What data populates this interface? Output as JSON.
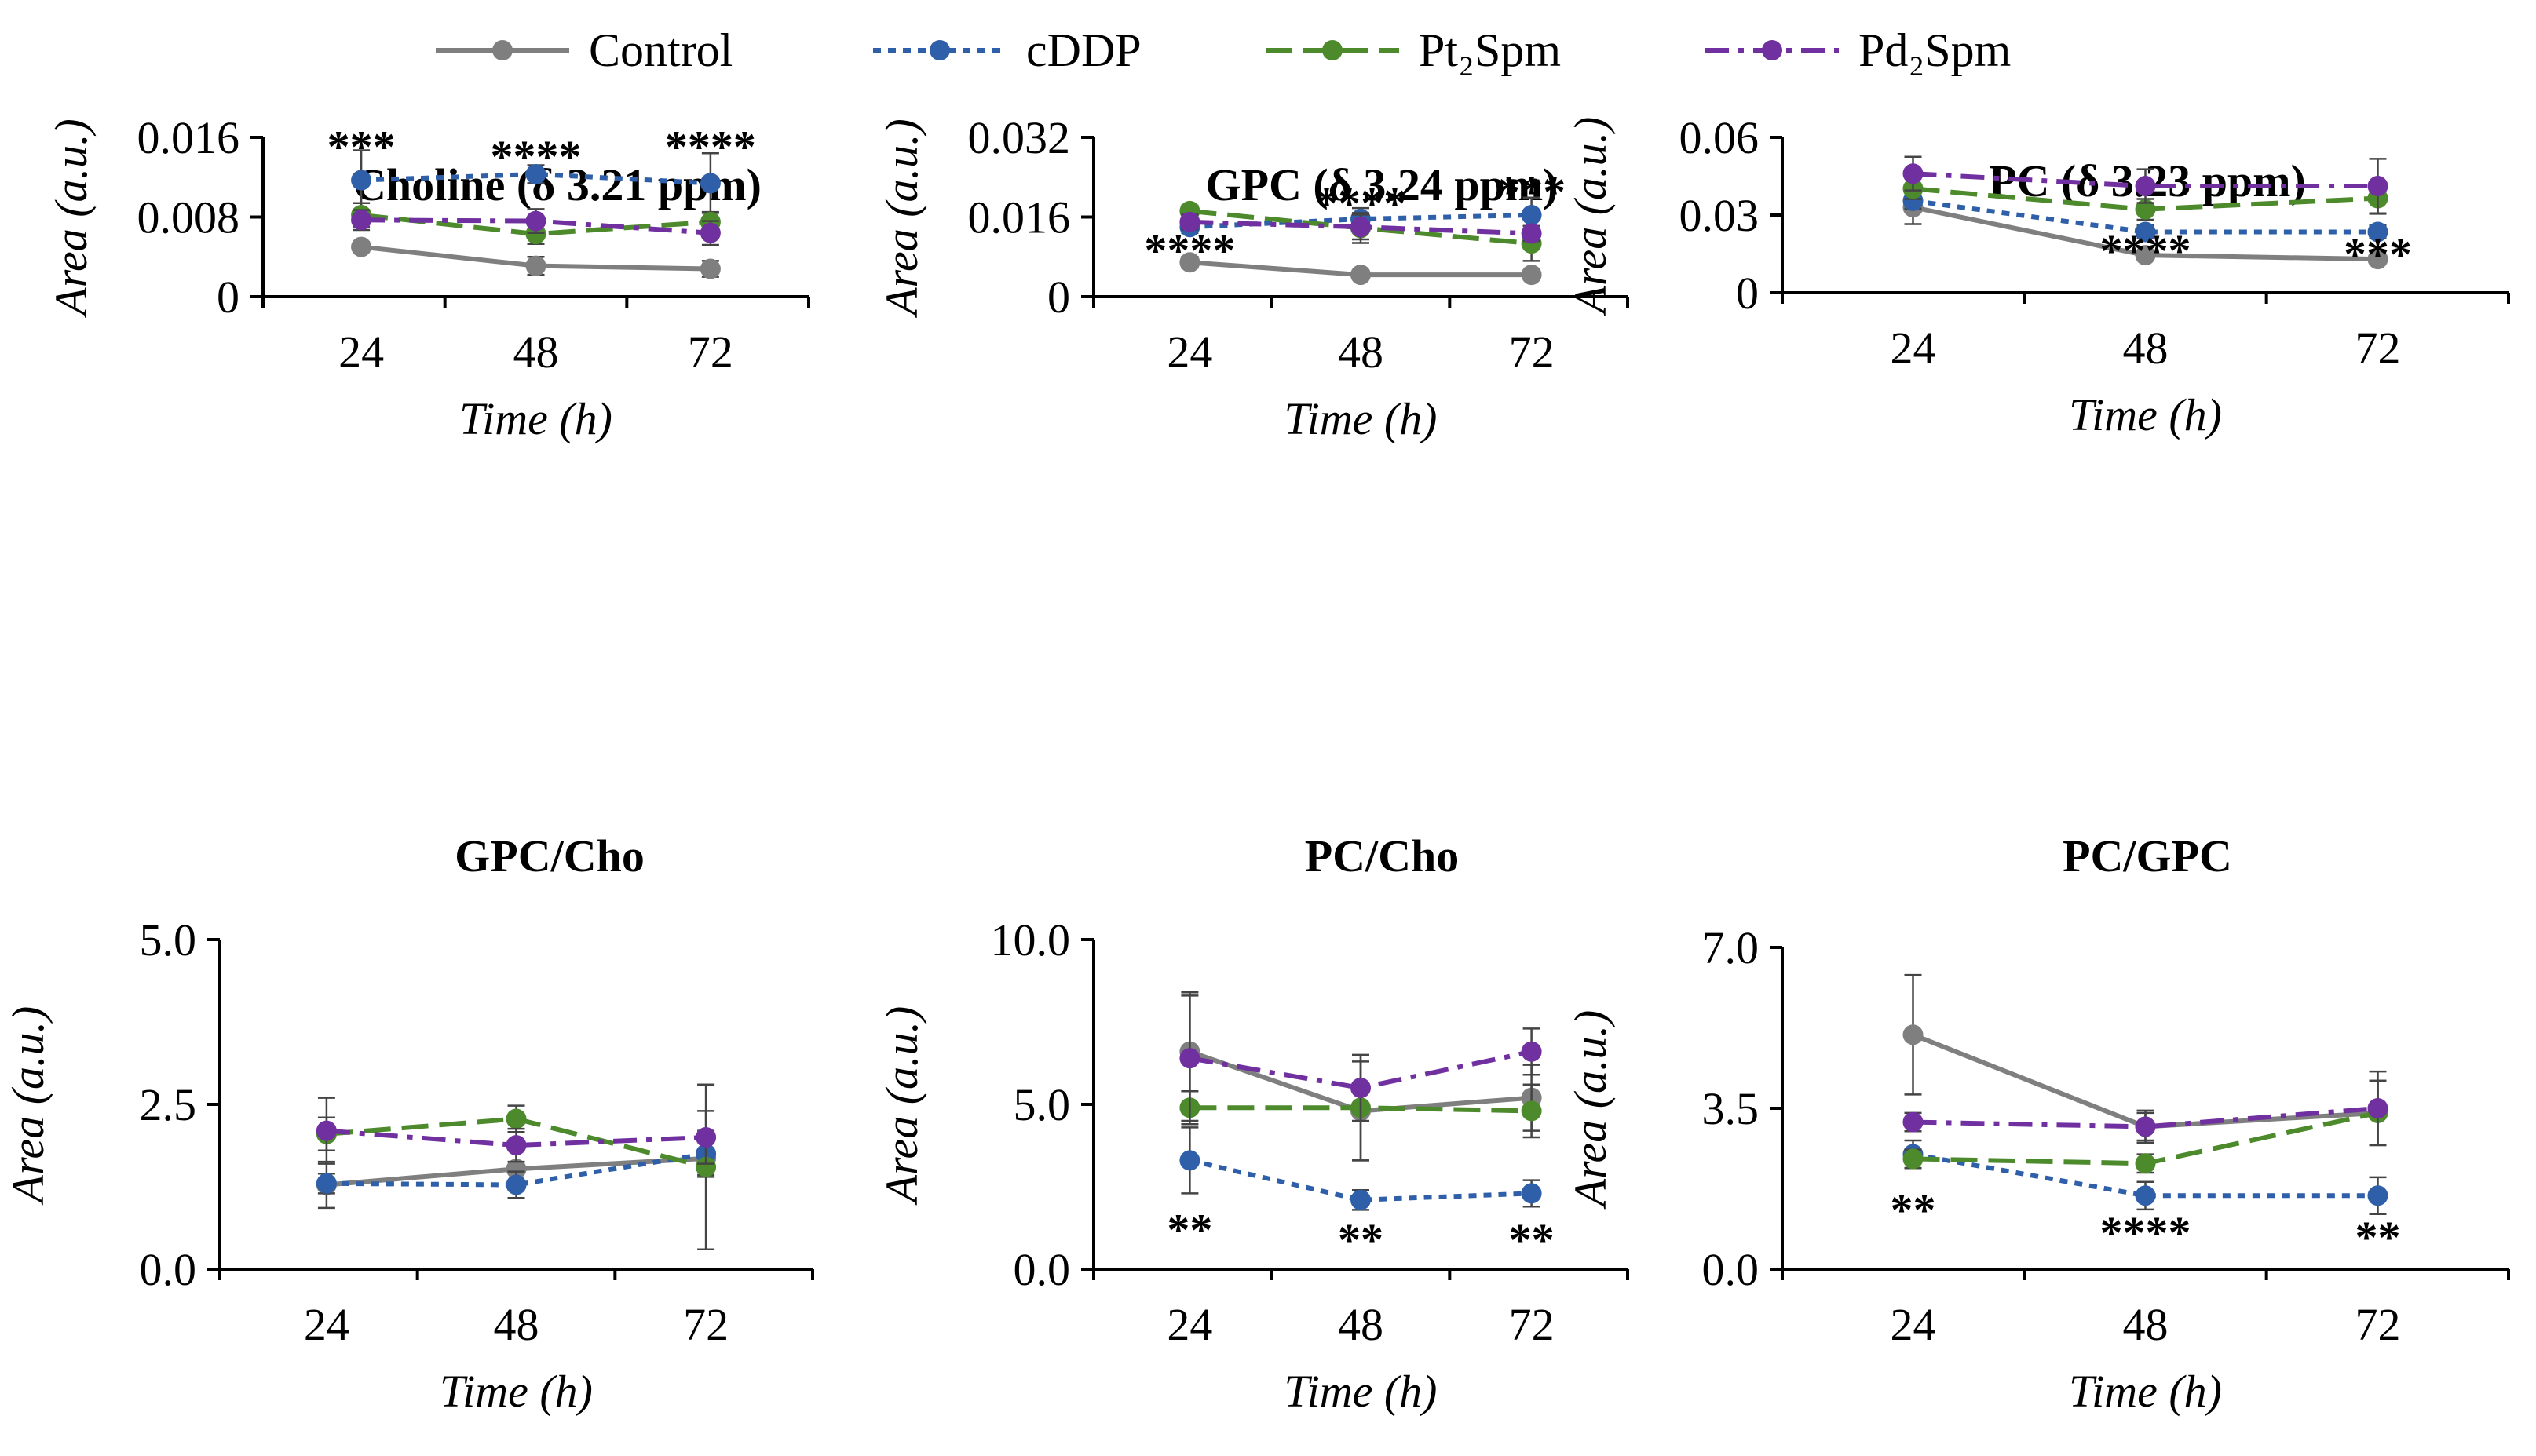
{
  "legend": [
    {
      "name": "Control",
      "color": "#7f7f7f",
      "dash": "solid"
    },
    {
      "name": "cDDP",
      "color": "#2e5fa8",
      "dash": "dot"
    },
    {
      "name": "Pt₂Spm",
      "color": "#4c8a2b",
      "dash": "longdash"
    },
    {
      "name": "Pd₂Spm",
      "color": "#7030a0",
      "dash": "dashdot"
    }
  ],
  "chart_data": [
    {
      "type": "line",
      "title": "Choline (δ 3.21 ppm)",
      "xlabel": "Time (h)",
      "ylabel": "Area (a.u.)",
      "categories": [
        "24",
        "48",
        "72"
      ],
      "ylim": [
        0,
        0.016
      ],
      "yticks": [
        "0",
        "0.008",
        "0.016"
      ],
      "series": [
        {
          "name": "Control",
          "values": [
            0.005,
            0.0031,
            0.0028
          ],
          "errors": [
            0.0005,
            0.0009,
            0.0008
          ]
        },
        {
          "name": "cDDP",
          "values": [
            0.0117,
            0.0123,
            0.0114
          ],
          "errors": [
            0.003,
            0.0009,
            0.003
          ]
        },
        {
          "name": "Pt₂Spm",
          "values": [
            0.0082,
            0.0063,
            0.0075
          ],
          "errors": [
            0.0012,
            0.001,
            0.001
          ]
        },
        {
          "name": "Pd₂Spm",
          "values": [
            0.0077,
            0.0076,
            0.0064
          ],
          "errors": [
            0.001,
            0.0012,
            0.0012
          ]
        }
      ],
      "annotations": [
        {
          "x": "24",
          "y": 0.0151,
          "text": "***"
        },
        {
          "x": "48",
          "y": 0.0141,
          "text": "****"
        },
        {
          "x": "72",
          "y": 0.0151,
          "text": "****"
        }
      ]
    },
    {
      "type": "line",
      "title": "GPC (δ 3.24 ppm)",
      "xlabel": "Time (h)",
      "ylabel": "Area (a.u.)",
      "categories": [
        "24",
        "48",
        "72"
      ],
      "ylim": [
        0,
        0.032
      ],
      "yticks": [
        "0",
        "0.016",
        "0.032"
      ],
      "series": [
        {
          "name": "Control",
          "values": [
            0.0069,
            0.0044,
            0.0044
          ],
          "errors": [
            0.0011,
            0.0004,
            0.0005
          ]
        },
        {
          "name": "cDDP",
          "values": [
            0.014,
            0.0156,
            0.0164
          ],
          "errors": [
            0.0012,
            0.0022,
            0.0035
          ]
        },
        {
          "name": "Pt₂Spm",
          "values": [
            0.0172,
            0.0138,
            0.0107
          ],
          "errors": [
            0.0011,
            0.003,
            0.0035
          ]
        },
        {
          "name": "Pd₂Spm",
          "values": [
            0.015,
            0.014,
            0.0127
          ],
          "errors": [
            0.0015,
            0.0025,
            0.0015
          ]
        }
      ],
      "annotations": [
        {
          "x": "24",
          "y": 0.0094,
          "text": "****"
        },
        {
          "x": "48",
          "y": 0.0188,
          "text": "****"
        },
        {
          "x": "72",
          "y": 0.0211,
          "text": "***"
        }
      ]
    },
    {
      "type": "line",
      "title": "PC (δ 3.23 ppm)",
      "xlabel": "Time (h)",
      "ylabel": "Area (a.u.)",
      "categories": [
        "24",
        "48",
        "72"
      ],
      "ylim": [
        0,
        0.06
      ],
      "yticks": [
        "0",
        "0.03",
        "0.06"
      ],
      "series": [
        {
          "name": "Control",
          "values": [
            0.033,
            0.0145,
            0.013
          ],
          "errors": [
            0.0065,
            0.0015,
            0.0015
          ]
        },
        {
          "name": "cDDP",
          "values": [
            0.0355,
            0.0235,
            0.0235
          ],
          "errors": [
            0.003,
            0.0025,
            0.0025
          ]
        },
        {
          "name": "Pt₂Spm",
          "values": [
            0.0402,
            0.0322,
            0.0365
          ],
          "errors": [
            0.004,
            0.004,
            0.006
          ]
        },
        {
          "name": "Pd₂Spm",
          "values": [
            0.046,
            0.0412,
            0.0412
          ],
          "errors": [
            0.0065,
            0.0065,
            0.0105
          ]
        }
      ],
      "annotations": [
        {
          "x": "48",
          "y": 0.0163,
          "text": "****"
        },
        {
          "x": "72",
          "y": 0.015,
          "text": "***"
        }
      ]
    },
    {
      "type": "line",
      "title": "GPC/Cho",
      "xlabel": "Time (h)",
      "ylabel": "Area (a.u.)",
      "categories": [
        "24",
        "48",
        "72"
      ],
      "ylim": [
        0,
        5.0
      ],
      "yticks": [
        "0.0",
        "2.5",
        "5.0"
      ],
      "series": [
        {
          "name": "Control",
          "values": [
            1.28,
            1.52,
            1.68
          ],
          "errors": [
            0.35,
            0.3,
            0.25
          ]
        },
        {
          "name": "cDDP",
          "values": [
            1.3,
            1.28,
            1.75
          ],
          "errors": [
            0.15,
            0.2,
            0.35
          ]
        },
        {
          "name": "Pt₂Spm",
          "values": [
            2.05,
            2.28,
            1.55
          ],
          "errors": [
            0.25,
            0.2,
            1.25
          ]
        },
        {
          "name": "Pd₂Spm",
          "values": [
            2.1,
            1.88,
            2.0
          ],
          "errors": [
            0.5,
            0.25,
            0.4
          ]
        }
      ],
      "annotations": []
    },
    {
      "type": "line",
      "title": "PC/Cho",
      "xlabel": "Time (h)",
      "ylabel": "Area (a.u.)",
      "categories": [
        "24",
        "48",
        "72"
      ],
      "ylim": [
        0,
        10.0
      ],
      "yticks": [
        "0.0",
        "5.0",
        "10.0"
      ],
      "series": [
        {
          "name": "Control",
          "values": [
            6.6,
            4.8,
            5.2
          ],
          "errors": [
            1.8,
            1.5,
            1.0
          ]
        },
        {
          "name": "cDDP",
          "values": [
            3.3,
            2.1,
            2.3
          ],
          "errors": [
            1.0,
            0.3,
            0.4
          ]
        },
        {
          "name": "Pt₂Spm",
          "values": [
            4.9,
            4.9,
            4.8
          ],
          "errors": [
            0.5,
            1.6,
            0.8
          ]
        },
        {
          "name": "Pd₂Spm",
          "values": [
            6.4,
            5.5,
            6.6
          ],
          "errors": [
            1.9,
            1.0,
            0.7
          ]
        }
      ],
      "annotations": [
        {
          "x": "24",
          "y": 1.2,
          "text": "**"
        },
        {
          "x": "48",
          "y": 0.9,
          "text": "**"
        },
        {
          "x": "72",
          "y": 0.9,
          "text": "**"
        }
      ]
    },
    {
      "type": "line",
      "title": "PC/GPC",
      "xlabel": "Time (h)",
      "ylabel": "Area (a.u.)",
      "categories": [
        "24",
        "48",
        "72"
      ],
      "ylim": [
        0,
        7.0
      ],
      "yticks": [
        "0.0",
        "3.5",
        "7.0"
      ],
      "series": [
        {
          "name": "Control",
          "values": [
            5.1,
            3.1,
            3.4
          ],
          "errors": [
            1.3,
            0.35,
            0.7
          ]
        },
        {
          "name": "cDDP",
          "values": [
            2.5,
            1.6,
            1.6
          ],
          "errors": [
            0.3,
            0.3,
            0.4
          ]
        },
        {
          "name": "Pt₂Spm",
          "values": [
            2.4,
            2.3,
            3.4
          ],
          "errors": [
            0.2,
            0.2,
            0.7
          ]
        },
        {
          "name": "Pd₂Spm",
          "values": [
            3.2,
            3.1,
            3.5
          ],
          "errors": [
            0.2,
            0.3,
            0.8
          ]
        }
      ],
      "annotations": [
        {
          "x": "24",
          "y": 1.3,
          "text": "**"
        },
        {
          "x": "48",
          "y": 0.8,
          "text": "****"
        },
        {
          "x": "72",
          "y": 0.7,
          "text": "**"
        }
      ]
    }
  ]
}
